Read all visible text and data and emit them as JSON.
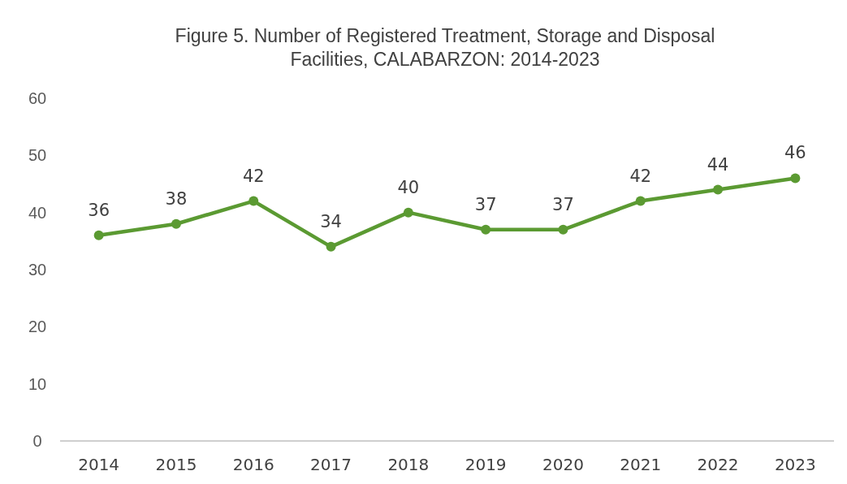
{
  "chart_data": {
    "type": "line",
    "title": "Figure 5. Number of Registered Treatment, Storage and Disposal Facilities, CALABARZON: 2014-2023",
    "categories": [
      "2014",
      "2015",
      "2016",
      "2017",
      "2018",
      "2019",
      "2020",
      "2021",
      "2022",
      "2023"
    ],
    "series": [
      {
        "color": "#5b9a32",
        "values": [
          36,
          38,
          42,
          34,
          40,
          37,
          37,
          42,
          44,
          46
        ]
      }
    ],
    "ylim": [
      0,
      60
    ],
    "yticks": [
      0,
      10,
      20,
      30,
      40,
      50,
      60
    ],
    "grid": false,
    "marker": "circle",
    "line_style": "solid",
    "data_labels": true
  }
}
